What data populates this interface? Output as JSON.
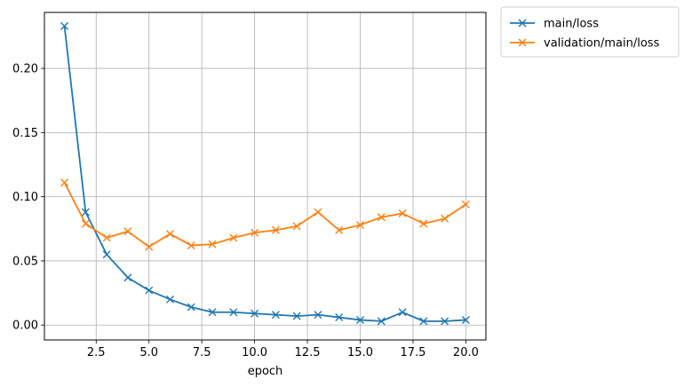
{
  "chart_data": {
    "type": "line",
    "title": "",
    "xlabel": "epoch",
    "ylabel": "",
    "xlim": [
      0.05,
      20.95
    ],
    "ylim": [
      -0.0116,
      0.2436
    ],
    "xticks": [
      "2.5",
      "5.0",
      "7.5",
      "10.0",
      "12.5",
      "15.0",
      "17.5",
      "20.0"
    ],
    "yticks": [
      "0.00",
      "0.05",
      "0.10",
      "0.15",
      "0.20"
    ],
    "grid": true,
    "legend_placement": "outside-top-right",
    "x": [
      1,
      2,
      3,
      4,
      5,
      6,
      7,
      8,
      9,
      10,
      11,
      12,
      13,
      14,
      15,
      16,
      17,
      18,
      19,
      20
    ],
    "series": [
      {
        "name": "main/loss",
        "color": "#1f77b4",
        "marker": "x",
        "values": [
          0.233,
          0.088,
          0.055,
          0.037,
          0.027,
          0.02,
          0.014,
          0.01,
          0.01,
          0.009,
          0.008,
          0.007,
          0.008,
          0.006,
          0.004,
          0.003,
          0.01,
          0.003,
          0.003,
          0.004
        ]
      },
      {
        "name": "validation/main/loss",
        "color": "#ff7f0e",
        "marker": "x",
        "values": [
          0.111,
          0.079,
          0.068,
          0.073,
          0.061,
          0.071,
          0.062,
          0.063,
          0.068,
          0.072,
          0.074,
          0.077,
          0.088,
          0.074,
          0.078,
          0.084,
          0.087,
          0.079,
          0.083,
          0.094
        ]
      }
    ]
  }
}
